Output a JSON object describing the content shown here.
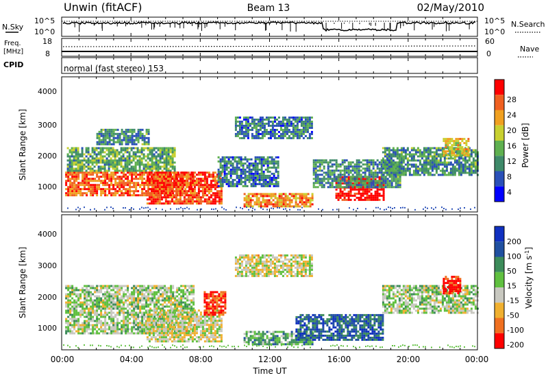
{
  "header": {
    "station": "Unwin (fitACF)",
    "beam": "Beam 13",
    "date": "02/May/2010"
  },
  "noise_panel": {
    "left_label": "N.Sky",
    "right_label": "N.Search",
    "ticks": [
      "10^5",
      "10^0"
    ],
    "right_ticks": [
      "10^5",
      "10^0"
    ]
  },
  "freq_panel": {
    "left_label_1": "Freq.",
    "left_label_2": "[MHz]",
    "left_ticks": [
      "18",
      "8"
    ],
    "right_ticks": [
      "60",
      "0"
    ],
    "right_label": "Nave"
  },
  "cpid_panel": {
    "label": "CPID",
    "text": "normal (fast stereo) 153"
  },
  "time_axis": {
    "ticks": [
      "00:00",
      "04:00",
      "08:00",
      "12:00",
      "16:00",
      "20:00",
      "00:00"
    ],
    "label": "Time UT"
  },
  "power_panel": {
    "ylabel": "Slant Range [km]",
    "yticks": [
      "4000",
      "3000",
      "2000",
      "1000"
    ],
    "colorbar_label": "Power [dB]",
    "colorbar_ticks": [
      "28",
      "24",
      "20",
      "16",
      "12",
      "8",
      "4"
    ],
    "colors": [
      "#0000ff",
      "#2a50b8",
      "#3f8a6a",
      "#5fb050",
      "#c8d030",
      "#f0a020",
      "#f06020",
      "#ff0000"
    ]
  },
  "velocity_panel": {
    "ylabel": "Slant Range [km]",
    "yticks": [
      "4000",
      "3000",
      "2000",
      "1000"
    ],
    "colorbar_label": "Velocity [m s^-1]",
    "colorbar_ticks": [
      "200",
      "100",
      "50",
      "15",
      "-15",
      "-50",
      "-100",
      "-200"
    ],
    "colors": [
      "#1030c0",
      "#2050a0",
      "#3c8c5a",
      "#60c040",
      "#c8c8c0",
      "#f0b030",
      "#f07020",
      "#ff0000"
    ]
  },
  "chart_data": [
    {
      "type": "heatmap",
      "title": "Power [dB]",
      "xlabel": "Time UT",
      "ylabel": "Slant Range [km]",
      "xlim": [
        "00:00",
        "24:00"
      ],
      "ylim": [
        180,
        4600
      ],
      "colorbar_range": [
        0,
        30
      ],
      "regions": [
        {
          "t_start": 0.2,
          "t_end": 7.6,
          "r_low": 700,
          "r_high": 1500,
          "level": 24
        },
        {
          "t_start": 0.3,
          "t_end": 6.5,
          "r_low": 1500,
          "r_high": 2300,
          "level": 12
        },
        {
          "t_start": 4.9,
          "t_end": 9.2,
          "r_low": 450,
          "r_high": 1500,
          "level": 26
        },
        {
          "t_start": 2.0,
          "t_end": 5.0,
          "r_low": 2400,
          "r_high": 2900,
          "level": 10
        },
        {
          "t_start": 9.0,
          "t_end": 12.5,
          "r_low": 1000,
          "r_high": 2000,
          "level": 8
        },
        {
          "t_start": 10.5,
          "t_end": 14.5,
          "r_low": 350,
          "r_high": 800,
          "level": 22
        },
        {
          "t_start": 10.0,
          "t_end": 14.5,
          "r_low": 2600,
          "r_high": 3300,
          "level": 8
        },
        {
          "t_start": 15.8,
          "t_end": 18.6,
          "r_low": 600,
          "r_high": 1350,
          "level": 30
        },
        {
          "t_start": 14.5,
          "t_end": 19.5,
          "r_low": 1000,
          "r_high": 1900,
          "level": 10
        },
        {
          "t_start": 18.5,
          "t_end": 24.0,
          "r_low": 1400,
          "r_high": 2300,
          "level": 10
        },
        {
          "t_start": 22.0,
          "t_end": 23.5,
          "r_low": 2000,
          "r_high": 2600,
          "level": 18
        }
      ]
    },
    {
      "type": "heatmap",
      "title": "Velocity [m s^-1]",
      "xlabel": "Time UT",
      "ylabel": "Slant Range [km]",
      "xlim": [
        "00:00",
        "24:00"
      ],
      "ylim": [
        180,
        4600
      ],
      "colorbar_range": [
        -250,
        250
      ],
      "regions": [
        {
          "t_start": 0.2,
          "t_end": 7.6,
          "r_low": 700,
          "r_high": 2300,
          "level": 0
        },
        {
          "t_start": 4.9,
          "t_end": 9.2,
          "r_low": 450,
          "r_high": 1500,
          "level": -40
        },
        {
          "t_start": 8.2,
          "t_end": 9.4,
          "r_low": 1300,
          "r_high": 2100,
          "level": -200
        },
        {
          "t_start": 10.5,
          "t_end": 14.5,
          "r_low": 350,
          "r_high": 800,
          "level": 60
        },
        {
          "t_start": 10.0,
          "t_end": 14.5,
          "r_low": 2600,
          "r_high": 3300,
          "level": -40
        },
        {
          "t_start": 13.5,
          "t_end": 18.6,
          "r_low": 500,
          "r_high": 1350,
          "level": 150
        },
        {
          "t_start": 18.5,
          "t_end": 24.0,
          "r_low": 1400,
          "r_high": 2300,
          "level": 0
        },
        {
          "t_start": 22.0,
          "t_end": 23.0,
          "r_low": 2000,
          "r_high": 2600,
          "level": -220
        }
      ]
    }
  ]
}
